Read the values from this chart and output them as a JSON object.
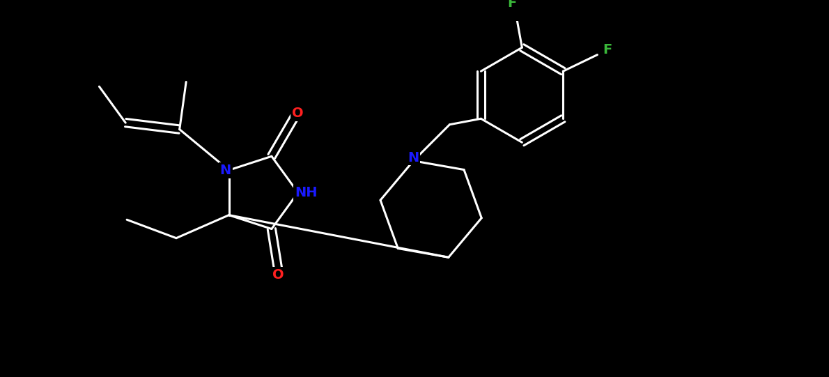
{
  "background_color": "#000000",
  "line_color": "#ffffff",
  "atom_colors": {
    "N": "#1a1aff",
    "O": "#ff2020",
    "F": "#3ab83a",
    "C": "#ffffff"
  },
  "figsize": [
    11.9,
    5.41
  ],
  "dpi": 100
}
